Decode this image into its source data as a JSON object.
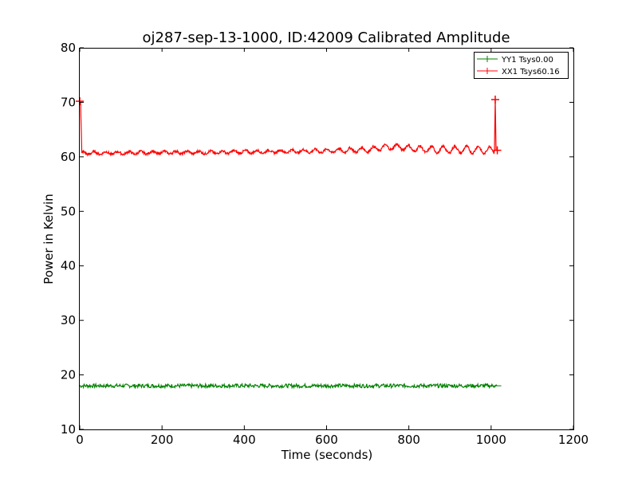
{
  "chart_data": {
    "type": "line",
    "title": "oj287-sep-13-1000, ID:42009 Calibrated Amplitude",
    "xlabel": "Time (seconds)",
    "ylabel": "Power in Kelvin",
    "xlim": [
      0,
      1200
    ],
    "ylim": [
      10,
      80
    ],
    "xticks": [
      0,
      200,
      400,
      600,
      800,
      1000,
      1200
    ],
    "yticks": [
      10,
      20,
      30,
      40,
      50,
      60,
      70,
      80
    ],
    "grid": false,
    "legend_position": "top-right",
    "series": [
      {
        "name": "YY1 Tsys0.00",
        "color": "#008000",
        "x_range": [
          0,
          1015
        ],
        "value": 18.0,
        "noise": 0.35
      },
      {
        "name": "XX1 Tsys60.16",
        "color": "#ff0000",
        "x": [
          0,
          2,
          5,
          50,
          100,
          200,
          300,
          400,
          500,
          600,
          700,
          750,
          780,
          800,
          850,
          900,
          950,
          1000,
          1008,
          1010,
          1012,
          1015
        ],
        "y": [
          70.2,
          70.0,
          60.7,
          60.7,
          60.7,
          60.8,
          60.8,
          60.9,
          61.0,
          61.1,
          61.3,
          61.8,
          61.8,
          61.6,
          61.3,
          61.3,
          61.3,
          61.2,
          61.2,
          70.5,
          61.2,
          61.2
        ]
      }
    ]
  }
}
